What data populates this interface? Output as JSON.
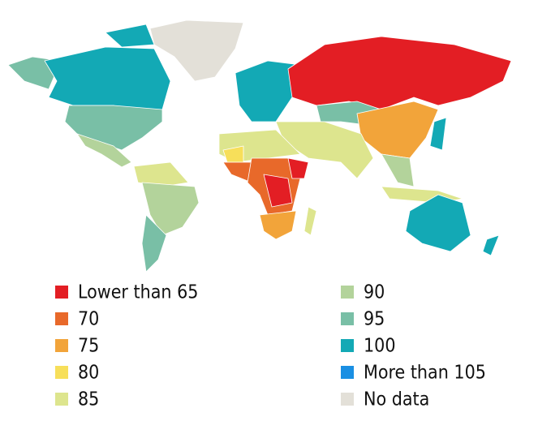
{
  "legend": {
    "items": [
      {
        "label": "Lower than 65",
        "color": "#e31e24"
      },
      {
        "label": "70",
        "color": "#e8692a"
      },
      {
        "label": "75",
        "color": "#f2a43a"
      },
      {
        "label": "80",
        "color": "#f7df5a"
      },
      {
        "label": "85",
        "color": "#dde58e"
      },
      {
        "label": "90",
        "color": "#b3d39b"
      },
      {
        "label": "95",
        "color": "#79bfa6"
      },
      {
        "label": "100",
        "color": "#13a9b5"
      },
      {
        "label": "More than 105",
        "color": "#1a8fe3"
      },
      {
        "label": "No data",
        "color": "#e3e0d8"
      }
    ]
  }
}
